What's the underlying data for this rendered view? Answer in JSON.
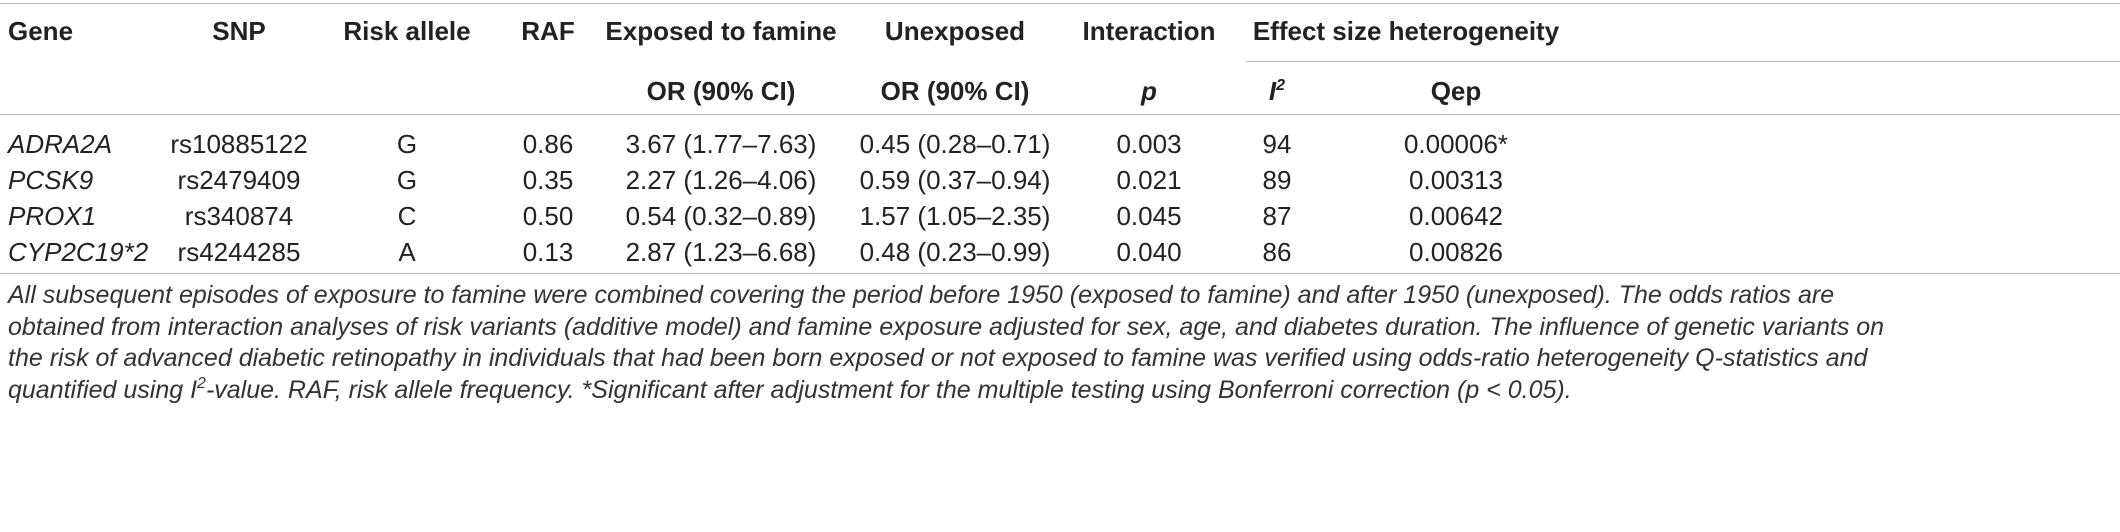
{
  "table": {
    "headers_row1": {
      "gene": "Gene",
      "snp": "SNP",
      "risk_allele": "Risk allele",
      "raf": "RAF",
      "exposed": "Exposed to famine",
      "unexposed": "Unexposed",
      "interaction": "Interaction",
      "heterogeneity": "Effect size heterogeneity"
    },
    "headers_row2": {
      "exposed": "OR (90% CI)",
      "unexposed": "OR (90% CI)",
      "interaction": "p",
      "i2_base": "I",
      "i2_sup": "2",
      "qep": "Qep"
    },
    "rows": [
      {
        "gene": "ADRA2A",
        "snp": "rs10885122",
        "risk_allele": "G",
        "raf": "0.86",
        "exposed": "3.67 (1.77–7.63)",
        "unexposed": "0.45 (0.28–0.71)",
        "p": "0.003",
        "i2": "94",
        "qep": "0.00006*"
      },
      {
        "gene": "PCSK9",
        "snp": "rs2479409",
        "risk_allele": "G",
        "raf": "0.35",
        "exposed": "2.27 (1.26–4.06)",
        "unexposed": "0.59 (0.37–0.94)",
        "p": "0.021",
        "i2": "89",
        "qep": "0.00313"
      },
      {
        "gene": "PROX1",
        "snp": "rs340874",
        "risk_allele": "C",
        "raf": "0.50",
        "exposed": "0.54 (0.32–0.89)",
        "unexposed": "1.57 (1.05–2.35)",
        "p": "0.045",
        "i2": "87",
        "qep": "0.00642"
      },
      {
        "gene": "CYP2C19*2",
        "snp": "rs4244285",
        "risk_allele": "A",
        "raf": "0.13",
        "exposed": "2.87 (1.23–6.68)",
        "unexposed": "0.48 (0.23–0.99)",
        "p": "0.040",
        "i2": "86",
        "qep": "0.00826"
      }
    ]
  },
  "footnote": {
    "line1": "All subsequent episodes of exposure to famine were combined covering the period before 1950 (exposed to famine) and after 1950 (unexposed). The odds ratios are",
    "line2": "obtained from interaction analyses of risk variants (additive model) and famine exposure adjusted for sex, age, and diabetes duration. The influence of genetic variants on",
    "line3": "the risk of advanced diabetic retinopathy in individuals that had been born exposed or not exposed to famine was verified using odds-ratio heterogeneity Q-statistics and",
    "line4_pre": "quantified using I",
    "line4_sup": "2",
    "line4_post": "-value. RAF, risk allele frequency. *Significant after adjustment for the multiple testing using Bonferroni correction (p < 0.05)."
  }
}
